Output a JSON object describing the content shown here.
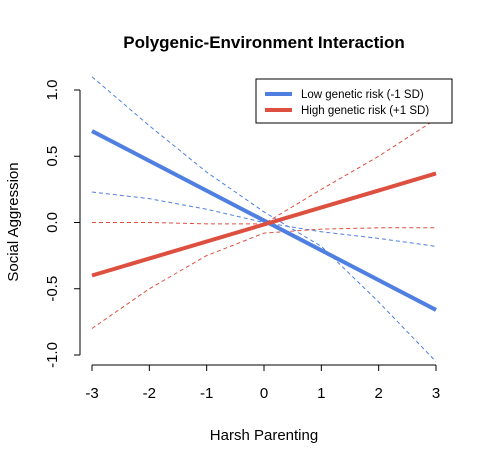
{
  "chart_data": {
    "type": "line",
    "title": "Polygenic-Environment Interaction",
    "xlabel": "Harsh Parenting",
    "ylabel": "Social Aggression",
    "xlim": [
      -3,
      3
    ],
    "ylim": [
      -1.0,
      1.0
    ],
    "xticks": [
      "-3",
      "-2",
      "-1",
      "0",
      "1",
      "2",
      "3"
    ],
    "yticks": [
      "-1.0",
      "-0.5",
      "0.0",
      "0.5",
      "1.0"
    ],
    "grid": false,
    "legend_position": "top-right",
    "series": [
      {
        "name": "Low genetic risk (-1 SD)",
        "color": "#4f7fe0",
        "x": [
          -3,
          3
        ],
        "y": [
          0.69,
          -0.66
        ],
        "ci_upper": {
          "x": [
            -3,
            -2,
            -1,
            0,
            1,
            2,
            3
          ],
          "y": [
            1.1,
            0.73,
            0.38,
            0.08,
            -0.18,
            -0.6,
            -1.05
          ]
        },
        "ci_lower": {
          "x": [
            -3,
            -2,
            -1,
            0,
            1,
            2,
            3
          ],
          "y": [
            0.23,
            0.18,
            0.1,
            0.0,
            -0.07,
            -0.12,
            -0.18
          ]
        }
      },
      {
        "name": "High genetic risk (+1 SD)",
        "color": "#dd5040",
        "x": [
          -3,
          3
        ],
        "y": [
          -0.4,
          0.37
        ],
        "ci_upper": {
          "x": [
            -3,
            -2,
            -1,
            0,
            1,
            2,
            3
          ],
          "y": [
            0.0,
            0.0,
            -0.01,
            -0.01,
            0.25,
            0.5,
            0.78
          ]
        },
        "ci_lower": {
          "x": [
            -3,
            -2,
            -1,
            0,
            1,
            2,
            3
          ],
          "y": [
            -0.8,
            -0.5,
            -0.25,
            -0.08,
            -0.05,
            -0.04,
            -0.04
          ]
        }
      }
    ]
  }
}
